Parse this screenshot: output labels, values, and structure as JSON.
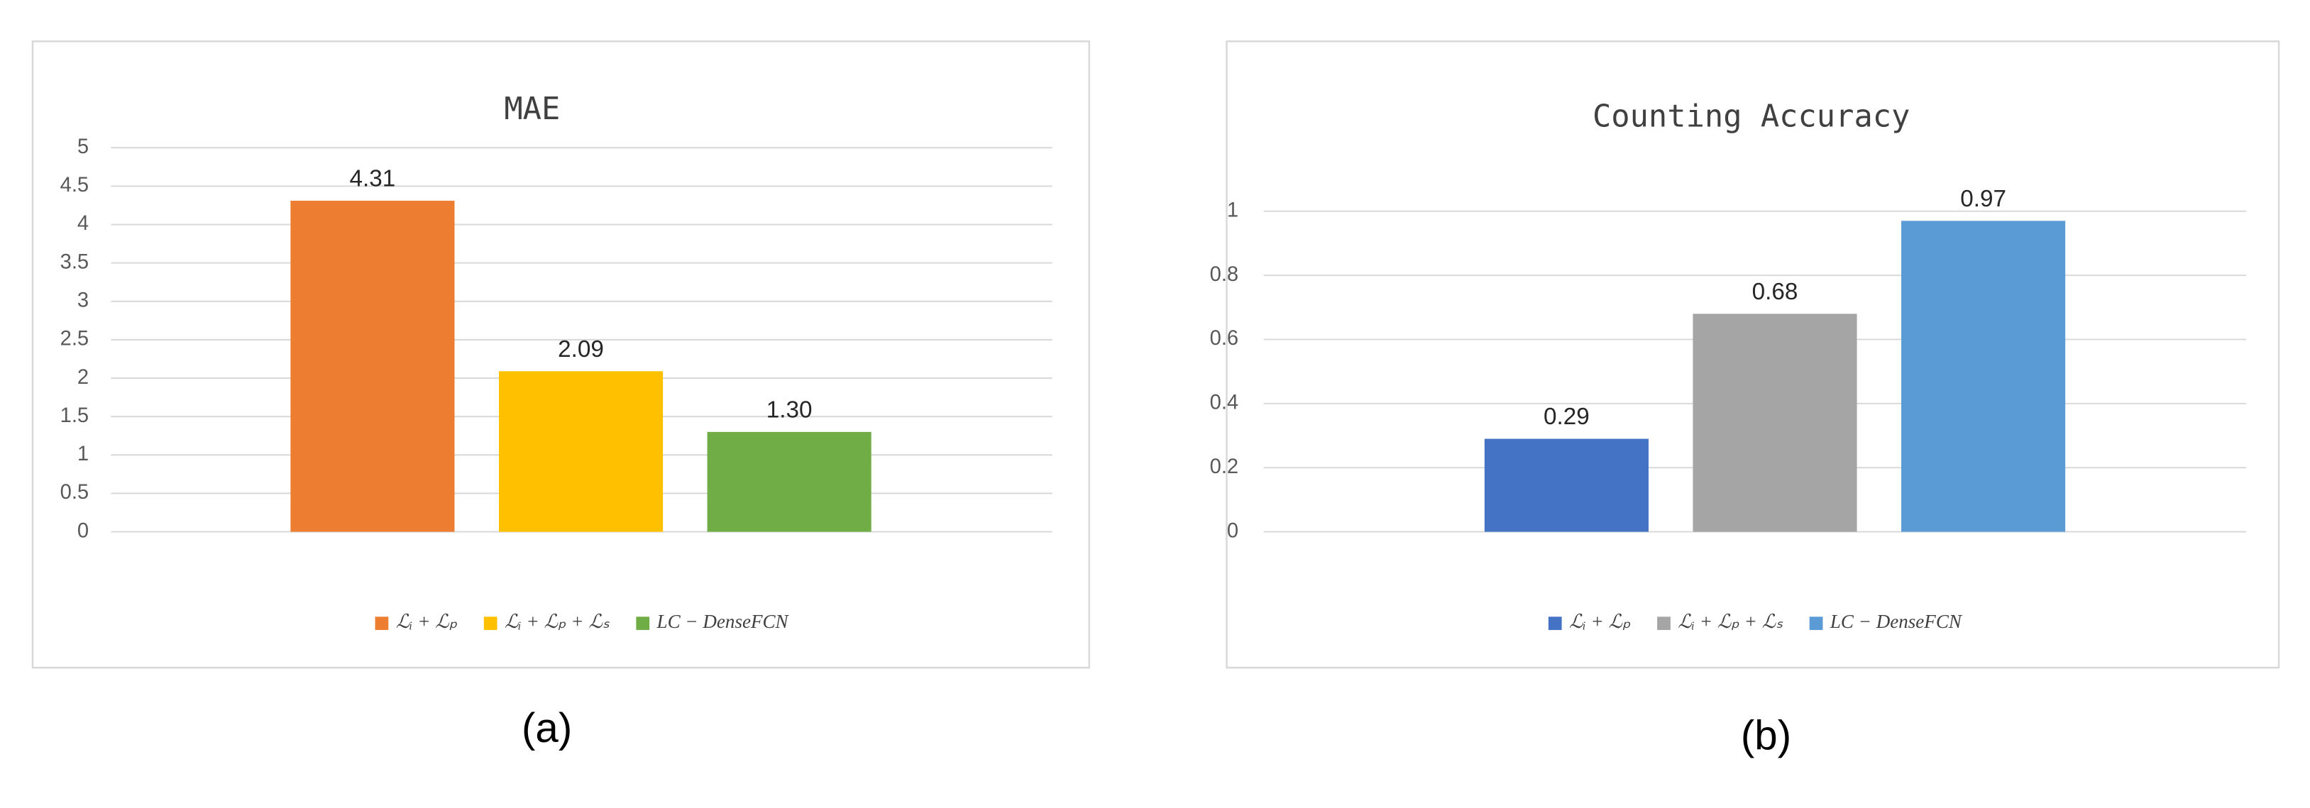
{
  "chart_data": [
    {
      "type": "bar",
      "title": "MAE",
      "panel_label": "(a)",
      "series": [
        {
          "name": "ℒᵢ + ℒₚ",
          "color": "#ed7d31",
          "values": [
            4.31
          ]
        },
        {
          "name": "ℒᵢ + ℒₚ + ℒₛ",
          "color": "#ffc000",
          "values": [
            2.09
          ]
        },
        {
          "name": "LC − DenseFCN",
          "color": "#70ad47",
          "values": [
            1.3
          ],
          "value_labels": [
            "1.30"
          ]
        }
      ],
      "ylim": [
        0,
        5
      ],
      "yticks": [
        0,
        0.5,
        1,
        1.5,
        2,
        2.5,
        3,
        3.5,
        4,
        4.5,
        5
      ],
      "grid": true,
      "legend": "bottom"
    },
    {
      "type": "bar",
      "title": "Counting Accuracy",
      "panel_label": "(b)",
      "series": [
        {
          "name": "ℒᵢ + ℒₚ",
          "color": "#4472c4",
          "values": [
            0.29
          ]
        },
        {
          "name": "ℒᵢ + ℒₚ + ℒₛ",
          "color": "#a5a5a5",
          "values": [
            0.68
          ]
        },
        {
          "name": "LC − DenseFCN",
          "color": "#5b9bd5",
          "values": [
            0.97
          ]
        }
      ],
      "ylim": [
        0,
        1
      ],
      "yticks": [
        0,
        0.2,
        0.4,
        0.6,
        0.8,
        1
      ],
      "grid": true,
      "legend": "bottom"
    }
  ]
}
